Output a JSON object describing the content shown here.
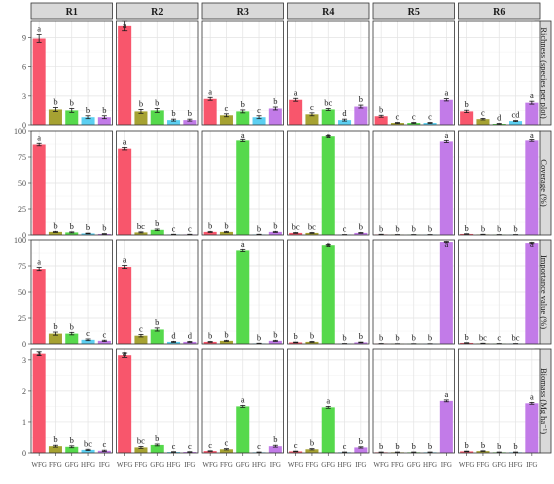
{
  "chart_data": {
    "type": "bar",
    "categories": [
      "WFG",
      "FFG",
      "GFG",
      "HFG",
      "IFG"
    ],
    "colors": [
      "#f8566c",
      "#a6a232",
      "#56d94c",
      "#5ccff1",
      "#c27be8"
    ],
    "columns": [
      "R1",
      "R2",
      "R3",
      "R4",
      "R5",
      "R6"
    ],
    "rows": [
      {
        "label": "Richness (species per plot)",
        "ylim": [
          0,
          10.7
        ],
        "ticks": [
          0,
          3,
          6,
          9
        ],
        "tick_labels": [
          "0",
          "3",
          "6",
          "9"
        ],
        "panels": [
          {
            "values": [
              8.9,
              1.6,
              1.5,
              0.8,
              0.8
            ],
            "errors": [
              0.4,
              0.2,
              0.2,
              0.15,
              0.15
            ],
            "letters": [
              "a",
              "b",
              "b",
              "b",
              "b"
            ]
          },
          {
            "values": [
              10.2,
              1.4,
              1.5,
              0.5,
              0.5
            ],
            "errors": [
              0.5,
              0.2,
              0.2,
              0.1,
              0.1
            ],
            "letters": [
              "a",
              "b",
              "b",
              "b",
              "b"
            ]
          },
          {
            "values": [
              2.7,
              1.0,
              1.4,
              0.8,
              1.7
            ],
            "errors": [
              0.15,
              0.15,
              0.15,
              0.15,
              0.15
            ],
            "letters": [
              "a",
              "c",
              "b",
              "c",
              "b"
            ]
          },
          {
            "values": [
              2.6,
              1.1,
              1.6,
              0.5,
              1.9
            ],
            "errors": [
              0.15,
              0.15,
              0.1,
              0.1,
              0.15
            ],
            "letters": [
              "a",
              "c",
              "bc",
              "d",
              "b"
            ]
          },
          {
            "values": [
              0.9,
              0.2,
              0.2,
              0.2,
              2.6
            ],
            "errors": [
              0.1,
              0.05,
              0.05,
              0.05,
              0.12
            ],
            "letters": [
              "b",
              "c",
              "c",
              "c",
              "a"
            ]
          },
          {
            "values": [
              1.4,
              0.6,
              0.1,
              0.4,
              2.3
            ],
            "errors": [
              0.12,
              0.08,
              0.05,
              0.05,
              0.15
            ],
            "letters": [
              "b",
              "c",
              "d",
              "cd",
              "a"
            ]
          }
        ]
      },
      {
        "label": "Coverage (%)",
        "ylim": [
          0,
          100
        ],
        "ticks": [
          0,
          25,
          50,
          75,
          100
        ],
        "tick_labels": [
          "0",
          "25",
          "50",
          "75",
          "100"
        ],
        "panels": [
          {
            "values": [
              87,
              3,
              2.5,
              1.5,
              1
            ],
            "errors": [
              1.2,
              0.5,
              0.5,
              0.3,
              0.3
            ],
            "letters": [
              "a",
              "b",
              "b",
              "b",
              "b"
            ]
          },
          {
            "values": [
              83,
              2.5,
              5,
              0.5,
              0.5
            ],
            "errors": [
              1.2,
              0.5,
              0.8,
              0.2,
              0.2
            ],
            "letters": [
              "a",
              "bc",
              "b",
              "c",
              "c"
            ]
          },
          {
            "values": [
              3,
              3,
              91,
              0.5,
              3
            ],
            "errors": [
              0.5,
              0.5,
              1.0,
              0.2,
              0.5
            ],
            "letters": [
              "b",
              "b",
              "a",
              "b",
              "b"
            ]
          },
          {
            "values": [
              2,
              2,
              95,
              0.3,
              2
            ],
            "errors": [
              0.4,
              0.4,
              0.8,
              0.1,
              0.4
            ],
            "letters": [
              "bc",
              "bc",
              "a",
              "c",
              "b"
            ]
          },
          {
            "values": [
              0.5,
              0.3,
              0.3,
              0.3,
              90
            ],
            "errors": [
              0.2,
              0.1,
              0.1,
              0.1,
              1.0
            ],
            "letters": [
              "b",
              "b",
              "b",
              "b",
              "a"
            ]
          },
          {
            "values": [
              1,
              0.5,
              0.3,
              0.3,
              91
            ],
            "errors": [
              0.2,
              0.2,
              0.1,
              0.1,
              0.8
            ],
            "letters": [
              "b",
              "b",
              "b",
              "b",
              "a"
            ]
          }
        ]
      },
      {
        "label": "Importance value (%)",
        "ylim": [
          0,
          100
        ],
        "ticks": [
          0,
          25,
          50,
          75,
          100
        ],
        "tick_labels": [
          "0",
          "25",
          "50",
          "75",
          "100"
        ],
        "panels": [
          {
            "values": [
              72,
              10,
              10,
              4,
              3
            ],
            "errors": [
              1.5,
              1.5,
              1.2,
              0.8,
              0.6
            ],
            "letters": [
              "a",
              "b",
              "b",
              "c",
              "c"
            ]
          },
          {
            "values": [
              74,
              8,
              14,
              2,
              2
            ],
            "errors": [
              1.5,
              1.2,
              1.5,
              0.5,
              0.5
            ],
            "letters": [
              "a",
              "c",
              "b",
              "d",
              "d"
            ]
          },
          {
            "values": [
              2,
              3,
              90,
              0.5,
              3
            ],
            "errors": [
              0.4,
              0.5,
              1.0,
              0.2,
              0.5
            ],
            "letters": [
              "b",
              "b",
              "a",
              "b",
              "b"
            ]
          },
          {
            "values": [
              1.5,
              2,
              95,
              0.3,
              1.5
            ],
            "errors": [
              0.3,
              0.4,
              0.8,
              0.1,
              0.3
            ],
            "letters": [
              "b",
              "b",
              "a",
              "b",
              "b"
            ]
          },
          {
            "values": [
              0.3,
              0.2,
              0.2,
              0.2,
              98
            ],
            "errors": [
              0.1,
              0.1,
              0.1,
              0.1,
              0.5
            ],
            "letters": [
              "b",
              "b",
              "b",
              "b",
              "a"
            ]
          },
          {
            "values": [
              1,
              0.5,
              0.3,
              0.3,
              97
            ],
            "errors": [
              0.2,
              0.2,
              0.1,
              0.1,
              0.6
            ],
            "letters": [
              "b",
              "bc",
              "c",
              "bc",
              "a"
            ]
          }
        ]
      },
      {
        "label": "Biomass (Mg ha⁻¹)",
        "ylim": [
          0,
          3.35
        ],
        "ticks": [
          0,
          1,
          2,
          3
        ],
        "tick_labels": [
          "0",
          "1",
          "2",
          "3"
        ],
        "panels": [
          {
            "values": [
              3.2,
              0.22,
              0.2,
              0.1,
              0.07
            ],
            "errors": [
              0.06,
              0.03,
              0.03,
              0.02,
              0.02
            ],
            "letters": [
              "a",
              "b",
              "b",
              "bc",
              "c"
            ]
          },
          {
            "values": [
              3.15,
              0.18,
              0.26,
              0.03,
              0.03
            ],
            "errors": [
              0.07,
              0.03,
              0.03,
              0.01,
              0.01
            ],
            "letters": [
              "a",
              "bc",
              "b",
              "c",
              "c"
            ]
          },
          {
            "values": [
              0.06,
              0.12,
              1.5,
              0.02,
              0.22
            ],
            "errors": [
              0.01,
              0.02,
              0.03,
              0.01,
              0.03
            ],
            "letters": [
              "c",
              "c",
              "a",
              "c",
              "b"
            ]
          },
          {
            "values": [
              0.05,
              0.12,
              1.47,
              0.02,
              0.18
            ],
            "errors": [
              0.01,
              0.02,
              0.03,
              0.01,
              0.02
            ],
            "letters": [
              "c",
              "b",
              "a",
              "c",
              "b"
            ]
          },
          {
            "values": [
              0.02,
              0.02,
              0.02,
              0.02,
              1.68
            ],
            "errors": [
              0.01,
              0.01,
              0.01,
              0.01,
              0.03
            ],
            "letters": [
              "b",
              "b",
              "b",
              "b",
              "a"
            ]
          },
          {
            "values": [
              0.05,
              0.06,
              0.02,
              0.02,
              1.6
            ],
            "errors": [
              0.01,
              0.01,
              0.01,
              0.01,
              0.03
            ],
            "letters": [
              "b",
              "b",
              "b",
              "b",
              "a"
            ]
          }
        ]
      }
    ],
    "grid": true
  }
}
